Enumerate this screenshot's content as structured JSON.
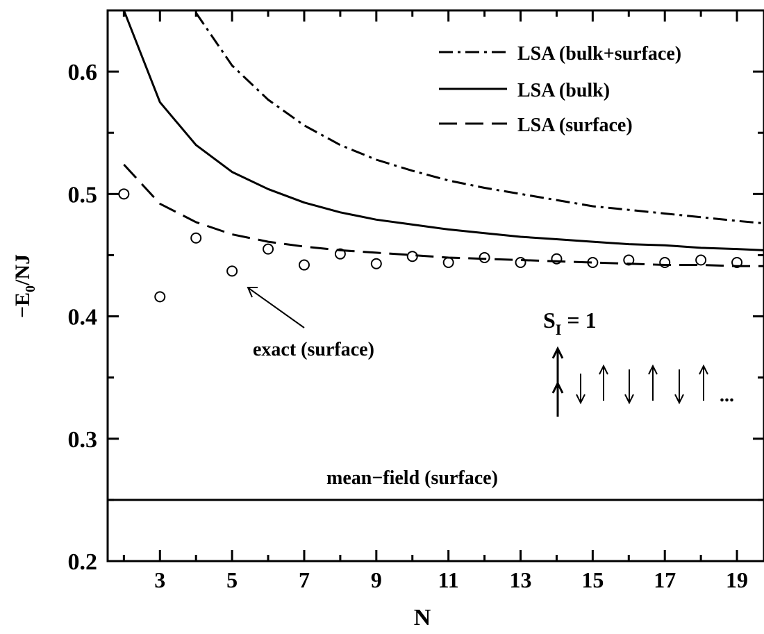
{
  "chart_data": {
    "type": "line",
    "xlabel": "N",
    "ylabel_main": "−E",
    "ylabel_sub": "0",
    "ylabel_tail": "/NJ",
    "xlim": [
      1.55,
      19.75
    ],
    "ylim": [
      0.2,
      0.65
    ],
    "x_major_ticks": [
      3,
      5,
      7,
      9,
      11,
      13,
      15,
      17,
      19
    ],
    "x_tick_labels": [
      "3",
      "5",
      "7",
      "9",
      "11",
      "13",
      "15",
      "17",
      "19"
    ],
    "x_minor_ticks": [
      2,
      4,
      6,
      8,
      10,
      12,
      14,
      16,
      18
    ],
    "y_major_ticks": [
      0.2,
      0.3,
      0.4,
      0.5,
      0.6
    ],
    "y_tick_labels": [
      "0.2",
      "0.3",
      "0.4",
      "0.5",
      "0.6"
    ],
    "y_minor_ticks": [
      0.25,
      0.35,
      0.45,
      0.55
    ],
    "grid": false,
    "legend_position": "top-right",
    "series": [
      {
        "name": "LSA (bulk+surface)",
        "style": "dashdot",
        "x": [
          4,
          5,
          6,
          7,
          8,
          9,
          10,
          11,
          12,
          13,
          14,
          15,
          16,
          17,
          18,
          19,
          19.75
        ],
        "y": [
          0.648,
          0.605,
          0.577,
          0.556,
          0.54,
          0.528,
          0.519,
          0.511,
          0.505,
          0.5,
          0.495,
          0.49,
          0.487,
          0.484,
          0.481,
          0.478,
          0.476
        ]
      },
      {
        "name": "LSA (bulk)",
        "style": "solid",
        "x": [
          2,
          3,
          4,
          5,
          6,
          7,
          8,
          9,
          10,
          11,
          12,
          13,
          14,
          15,
          16,
          17,
          18,
          19,
          19.75
        ],
        "y": [
          0.65,
          0.575,
          0.54,
          0.518,
          0.504,
          0.493,
          0.485,
          0.479,
          0.475,
          0.471,
          0.468,
          0.465,
          0.463,
          0.461,
          0.459,
          0.458,
          0.456,
          0.455,
          0.454
        ]
      },
      {
        "name": "LSA (surface)",
        "style": "dashed",
        "x": [
          2,
          3,
          4,
          5,
          6,
          7,
          8,
          9,
          10,
          11,
          12,
          13,
          14,
          15,
          16,
          17,
          18,
          19,
          19.75
        ],
        "y": [
          0.524,
          0.492,
          0.477,
          0.467,
          0.461,
          0.457,
          0.454,
          0.452,
          0.45,
          0.448,
          0.447,
          0.446,
          0.445,
          0.444,
          0.443,
          0.442,
          0.442,
          0.441,
          0.441
        ]
      },
      {
        "name": "exact (surface)",
        "style": "markers",
        "x": [
          2,
          3,
          4,
          5,
          6,
          7,
          8,
          9,
          10,
          11,
          12,
          13,
          14,
          15,
          16,
          17,
          18,
          19
        ],
        "y": [
          0.5,
          0.416,
          0.464,
          0.437,
          0.455,
          0.442,
          0.451,
          0.443,
          0.449,
          0.444,
          0.448,
          0.444,
          0.447,
          0.444,
          0.446,
          0.444,
          0.446,
          0.444
        ]
      },
      {
        "name": "mean−field (surface)",
        "style": "solid",
        "x": [
          1.55,
          19.75
        ],
        "y": [
          0.25,
          0.25
        ]
      }
    ],
    "annotations": {
      "exact_label": "exact (surface)",
      "meanfield_label": "mean−field (surface)",
      "spin_label_main": "S",
      "spin_label_sub": "I",
      "spin_label_tail": " = 1",
      "ellipsis": "..."
    }
  }
}
